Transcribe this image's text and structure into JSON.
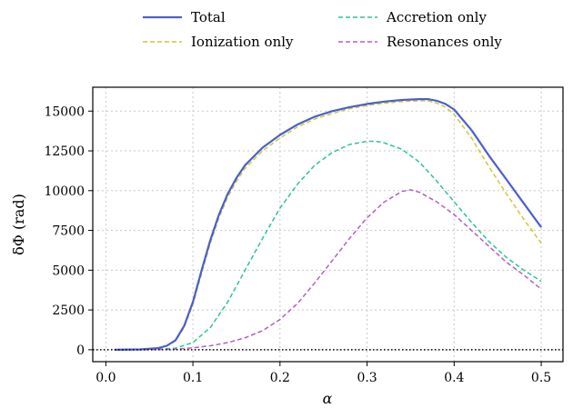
{
  "chart_data": {
    "type": "line",
    "title": "",
    "xlabel": "α",
    "ylabel": "δΦ (rad)",
    "xlim": [
      -0.015,
      0.525
    ],
    "ylim": [
      -750,
      16500
    ],
    "xticks": [
      0.0,
      0.1,
      0.2,
      0.3,
      0.4,
      0.5
    ],
    "xtick_labels": [
      "0.0",
      "0.1",
      "0.2",
      "0.3",
      "0.4",
      "0.5"
    ],
    "yticks": [
      0,
      2500,
      5000,
      7500,
      10000,
      12500,
      15000
    ],
    "ytick_labels": [
      "0",
      "2500",
      "5000",
      "7500",
      "10000",
      "12500",
      "15000"
    ],
    "grid": true,
    "legend_placement": "top-outside",
    "reference_line": {
      "y": 0,
      "style": "dotted",
      "color": "#000000"
    },
    "series": [
      {
        "name": "Total",
        "color": "#4a5fcf",
        "style": "solid",
        "x": [
          0.01,
          0.04,
          0.06,
          0.07,
          0.08,
          0.09,
          0.1,
          0.11,
          0.12,
          0.13,
          0.14,
          0.15,
          0.16,
          0.18,
          0.2,
          0.22,
          0.24,
          0.26,
          0.28,
          0.3,
          0.32,
          0.34,
          0.36,
          0.37,
          0.38,
          0.39,
          0.4,
          0.42,
          0.44,
          0.46,
          0.48,
          0.5
        ],
        "y": [
          0,
          20,
          100,
          250,
          600,
          1500,
          3000,
          5000,
          6900,
          8500,
          9800,
          10800,
          11600,
          12700,
          13500,
          14150,
          14650,
          15000,
          15250,
          15450,
          15600,
          15700,
          15750,
          15750,
          15650,
          15450,
          15100,
          13800,
          12200,
          10700,
          9200,
          7700
        ]
      },
      {
        "name": "Ionization only",
        "color": "#d1c735",
        "style": "dashed",
        "x": [
          0.01,
          0.04,
          0.06,
          0.07,
          0.08,
          0.09,
          0.1,
          0.11,
          0.12,
          0.13,
          0.14,
          0.15,
          0.16,
          0.18,
          0.2,
          0.22,
          0.24,
          0.26,
          0.28,
          0.3,
          0.32,
          0.34,
          0.36,
          0.37,
          0.38,
          0.39,
          0.4,
          0.42,
          0.44,
          0.46,
          0.48,
          0.5
        ],
        "y": [
          0,
          15,
          90,
          230,
          560,
          1400,
          2850,
          4800,
          6700,
          8300,
          9600,
          10600,
          11400,
          12500,
          13300,
          14000,
          14500,
          14850,
          15150,
          15350,
          15500,
          15600,
          15650,
          15650,
          15500,
          15250,
          14800,
          13300,
          11500,
          9800,
          8200,
          6700
        ]
      },
      {
        "name": "Accretion only",
        "color": "#2cc68c",
        "style": "dashed",
        "x": [
          0.01,
          0.05,
          0.08,
          0.1,
          0.12,
          0.14,
          0.16,
          0.18,
          0.2,
          0.22,
          0.24,
          0.26,
          0.28,
          0.3,
          0.31,
          0.32,
          0.34,
          0.36,
          0.38,
          0.4,
          0.42,
          0.44,
          0.46,
          0.48,
          0.5
        ],
        "y": [
          0,
          10,
          100,
          450,
          1400,
          3000,
          5000,
          7000,
          8900,
          10400,
          11600,
          12400,
          12900,
          13100,
          13100,
          13000,
          12600,
          11800,
          10600,
          9300,
          8000,
          6800,
          5800,
          5000,
          4300
        ]
      },
      {
        "name": "Resonances only",
        "color": "#b35fc2",
        "style": "dashed",
        "x": [
          0.01,
          0.05,
          0.08,
          0.1,
          0.12,
          0.14,
          0.16,
          0.18,
          0.2,
          0.22,
          0.24,
          0.26,
          0.28,
          0.3,
          0.32,
          0.34,
          0.35,
          0.36,
          0.38,
          0.4,
          0.42,
          0.44,
          0.46,
          0.48,
          0.5
        ],
        "y": [
          0,
          5,
          30,
          120,
          250,
          450,
          750,
          1200,
          1900,
          2900,
          4200,
          5600,
          7000,
          8300,
          9300,
          9950,
          10050,
          9900,
          9300,
          8500,
          7500,
          6500,
          5500,
          4700,
          3800
        ]
      }
    ]
  }
}
